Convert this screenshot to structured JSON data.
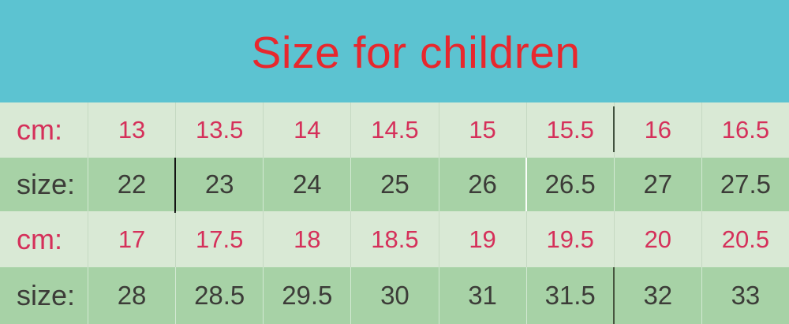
{
  "header": {
    "title": "Size for children"
  },
  "colors": {
    "header_bg": "#5cc3d1",
    "title_red": "#e7282e",
    "row_light_bg": "#d9e9d5",
    "row_dark_bg": "#a7d2a6",
    "cm_value_red": "#d5305a",
    "size_value_dark": "#3c3c38"
  },
  "table": {
    "rows": [
      {
        "label": "cm:",
        "values": [
          "13",
          "13.5",
          "14",
          "14.5",
          "15",
          "15.5",
          "16",
          "16.5"
        ]
      },
      {
        "label": "size:",
        "values": [
          "22",
          "23",
          "24",
          "25",
          "26",
          "26.5",
          "27",
          "27.5"
        ]
      },
      {
        "label": "cm:",
        "values": [
          "17",
          "17.5",
          "18",
          "18.5",
          "19",
          "19.5",
          "20",
          "20.5"
        ]
      },
      {
        "label": "size:",
        "values": [
          "28",
          "28.5",
          "29.5",
          "30",
          "31",
          "31.5",
          "32",
          "33"
        ]
      }
    ]
  }
}
